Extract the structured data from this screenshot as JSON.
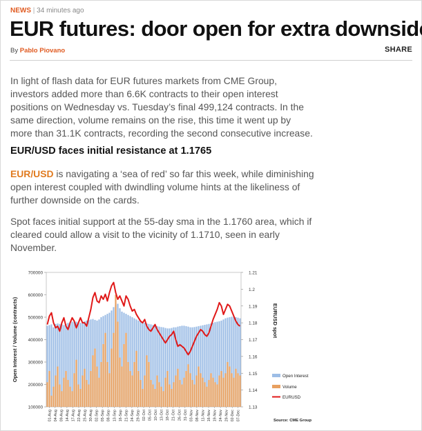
{
  "meta": {
    "category": "NEWS",
    "separator": "|",
    "time": "34 minutes ago"
  },
  "headline": "EUR futures: door open for extra downside",
  "byline": {
    "prefix": "By",
    "author": "Pablo Piovano"
  },
  "share_label": "SHARE",
  "paragraphs": {
    "p1": "In light of flash data for EUR futures markets from CME Group, investors added more than 6.6K contracts to their open interest positions on Wednesday vs. Tuesday’s final 499,124 contracts. In the same direction, volume remains on the rise, this time it went up by more than 31.1K contracts, recording the second consecutive increase.",
    "subheading": "EUR/USD faces initial resistance at 1.1765",
    "p2_link": "EUR/USD",
    "p2_rest": " is navigating a ‘sea of red’ so far this week, while diminishing open interest coupled with dwindling volume hints at the likeliness of further downside on the cards.",
    "p3": "Spot faces initial support at the 55-day sma in the 1.1760 area, which if cleared could allow a visit to the vicinity of 1.1710, seen in early November."
  },
  "chart_data": {
    "type": "bar",
    "ylabel": "Open Interest / Volume (contracts)",
    "y2label": "EURUSD spot",
    "ylim": [
      100000,
      700000
    ],
    "y2lim": [
      1.13,
      1.21
    ],
    "yticks": [
      "700000",
      "600000",
      "500000",
      "400000",
      "300000",
      "200000",
      "100000"
    ],
    "y2ticks": [
      "1.21",
      "1.2",
      "1.19",
      "1.18",
      "1.17",
      "1.16",
      "1.15",
      "1.14",
      "1.13"
    ],
    "xticks": [
      "01-Aug",
      "04-Aug",
      "09-Aug",
      "14-Aug",
      "17-Aug",
      "22-Aug",
      "25-Aug",
      "30-Aug",
      "02-Sep",
      "05-Sep",
      "08-Sep",
      "13-Sep",
      "16-Sep",
      "21-Sep",
      "24-Sep",
      "29-Sep",
      "02-Oct",
      "05-Oct",
      "10-Oct",
      "13-Oct",
      "18-Oct",
      "21-Oct",
      "26-Oct",
      "31-Oct",
      "03-Nov",
      "08-Nov",
      "11-Nov",
      "16-Nov",
      "19-Nov",
      "24-Nov",
      "29-Nov",
      "02-Dec",
      "07-Dec"
    ],
    "legend": [
      "Open Interest",
      "Volume",
      "EURUSD"
    ],
    "legend_position": "right",
    "source": "Source: CME Group",
    "colors": {
      "open_interest": "#9dbde6",
      "volume": "#e8a060",
      "eurusd": "#e01818"
    },
    "series": [
      {
        "name": "Open Interest",
        "values": [
          462000,
          465000,
          468000,
          455000,
          470000,
          472000,
          470000,
          468000,
          465000,
          470000,
          475000,
          478000,
          480000,
          482000,
          480000,
          478000,
          475000,
          480000,
          482000,
          485000,
          487000,
          490000,
          492000,
          488000,
          485000,
          490000,
          500000,
          505000,
          510000,
          515000,
          520000,
          530000,
          545000,
          555000,
          560000,
          540000,
          525000,
          520000,
          515000,
          510000,
          505000,
          500000,
          495000,
          490000,
          485000,
          480000,
          478000,
          475000,
          472000,
          470000,
          468000,
          465000,
          463000,
          460000,
          458000,
          456000,
          455000,
          452000,
          450000,
          450000,
          452000,
          455000,
          455000,
          458000,
          460000,
          462000,
          462000,
          460000,
          458000,
          455000,
          455000,
          456000,
          458000,
          460000,
          462000,
          464000,
          466000,
          468000,
          470000,
          472000,
          475000,
          478000,
          480000,
          482000,
          485000,
          490000,
          495000,
          498000,
          500000,
          502000,
          505000,
          500000,
          498000,
          495000
        ]
      },
      {
        "name": "Volume",
        "values": [
          210000,
          260000,
          150000,
          190000,
          240000,
          280000,
          200000,
          170000,
          230000,
          260000,
          220000,
          190000,
          170000,
          250000,
          310000,
          200000,
          180000,
          240000,
          270000,
          220000,
          200000,
          260000,
          330000,
          360000,
          280000,
          230000,
          300000,
          380000,
          430000,
          300000,
          250000,
          360000,
          430000,
          600000,
          480000,
          320000,
          280000,
          380000,
          430000,
          300000,
          260000,
          240000,
          300000,
          350000,
          260000,
          220000,
          180000,
          240000,
          330000,
          300000,
          220000,
          200000,
          180000,
          240000,
          210000,
          190000,
          170000,
          230000,
          260000,
          200000,
          180000,
          210000,
          240000,
          270000,
          220000,
          200000,
          230000,
          260000,
          290000,
          250000,
          220000,
          200000,
          240000,
          280000,
          250000,
          230000,
          210000,
          190000,
          220000,
          250000,
          230000,
          210000,
          200000,
          240000,
          260000,
          230000,
          250000,
          300000,
          280000,
          250000,
          230000,
          270000,
          250000,
          240000
        ]
      },
      {
        "name": "EURUSD",
        "values": [
          1.179,
          1.184,
          1.186,
          1.18,
          1.177,
          1.178,
          1.175,
          1.18,
          1.183,
          1.178,
          1.176,
          1.18,
          1.183,
          1.181,
          1.177,
          1.18,
          1.183,
          1.18,
          1.18,
          1.178,
          1.183,
          1.188,
          1.195,
          1.198,
          1.193,
          1.192,
          1.196,
          1.194,
          1.197,
          1.193,
          1.198,
          1.202,
          1.204,
          1.198,
          1.194,
          1.196,
          1.193,
          1.19,
          1.196,
          1.194,
          1.19,
          1.187,
          1.188,
          1.185,
          1.183,
          1.181,
          1.18,
          1.182,
          1.178,
          1.176,
          1.175,
          1.177,
          1.179,
          1.176,
          1.174,
          1.172,
          1.17,
          1.168,
          1.17,
          1.172,
          1.173,
          1.175,
          1.17,
          1.166,
          1.167,
          1.166,
          1.165,
          1.163,
          1.161,
          1.163,
          1.166,
          1.169,
          1.172,
          1.174,
          1.176,
          1.175,
          1.173,
          1.172,
          1.174,
          1.178,
          1.182,
          1.185,
          1.188,
          1.192,
          1.19,
          1.185,
          1.188,
          1.191,
          1.19,
          1.187,
          1.184,
          1.181,
          1.179,
          1.178
        ]
      }
    ]
  }
}
